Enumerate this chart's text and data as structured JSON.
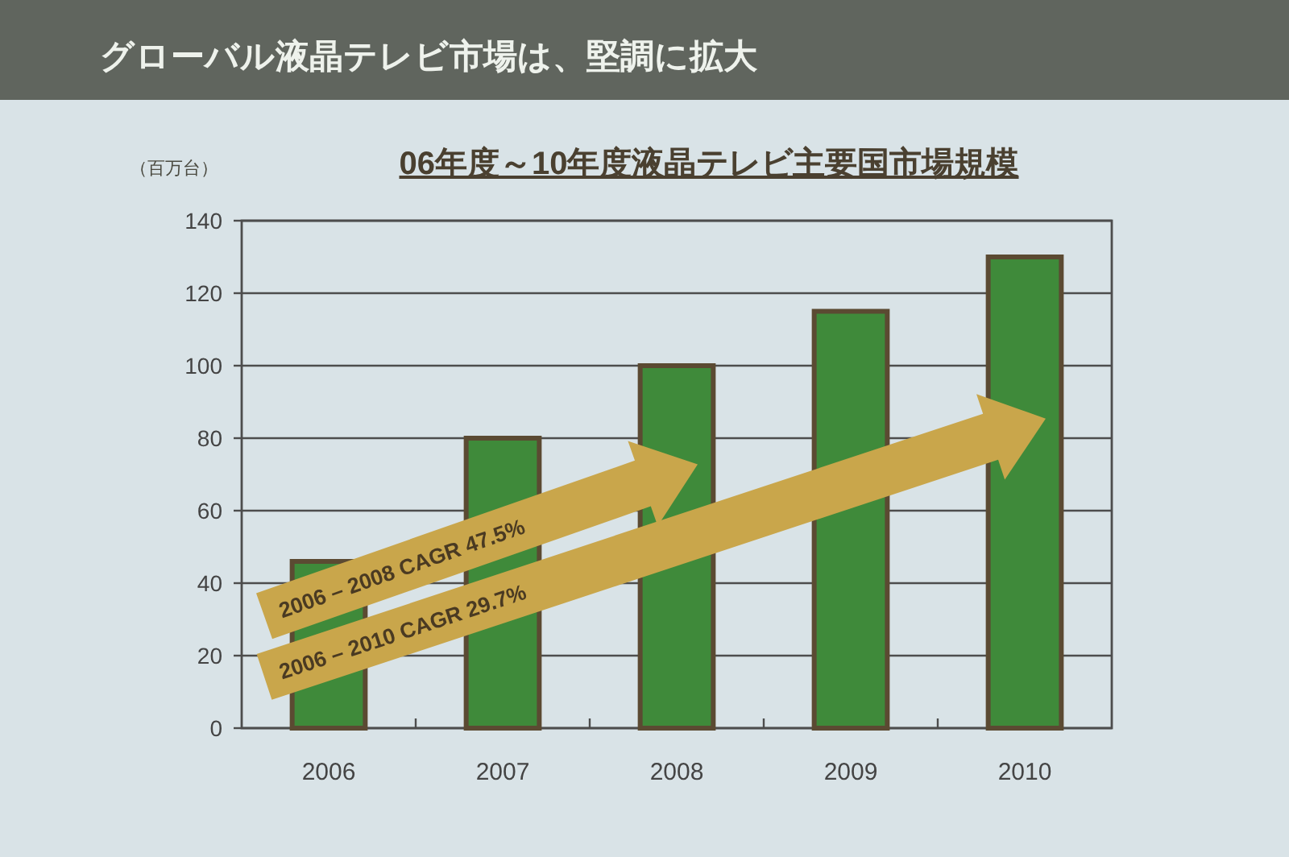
{
  "chart_data": {
    "type": "bar",
    "title": "グローバル液晶テレビ市場は、堅調に拡大",
    "subtitle": "06年度～10年度液晶テレビ主要国市場規模",
    "ylabel": "（百万台）",
    "categories": [
      "2006",
      "2007",
      "2008",
      "2009",
      "2010"
    ],
    "values": [
      46,
      80,
      100,
      115,
      130
    ],
    "color": "#3f8a3a",
    "ylim": [
      0,
      140
    ],
    "yticks": [
      0,
      20,
      40,
      60,
      80,
      100,
      120,
      140
    ],
    "grid": "y",
    "annotations": [
      "2006 – 2008 CAGR 47.5%",
      "2006 – 2010 CAGR 29.7%"
    ]
  }
}
